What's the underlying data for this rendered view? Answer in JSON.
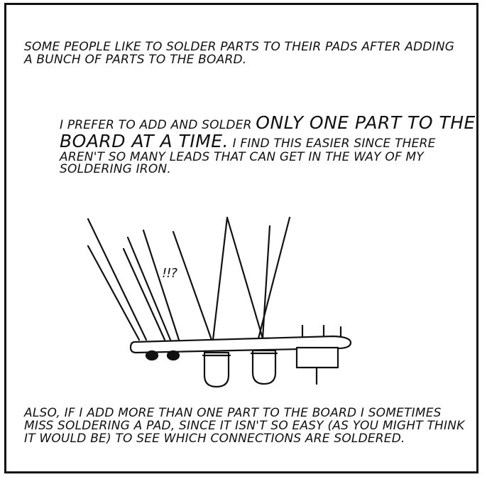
{
  "panel": {
    "intro_text": "SOME PEOPLE LIKE TO SOLDER PARTS TO THEIR PADS AFTER ADDING A BUNCH OF PARTS TO THE BOARD.",
    "pref_text_start": "I PREFER TO ADD AND SOLDER ",
    "pref_text_emphasis": "ONLY ONE PART TO THE BOARD AT A TIME.",
    "pref_text_end": " I FIND THIS EASIER SINCE THERE AREN'T SO MANY LEADS THAT CAN GET IN THE WAY OF MY SOLDERING IRON.",
    "exclamation": "!!?",
    "closing_text": "ALSO, IF I ADD MORE THAN ONE PART TO THE BOARD I SOMETIMES MISS SOLDERING A PAD, SINCE IT ISN'T SO EASY (AS YOU MIGHT THINK IT WOULD BE) TO SEE WHICH CONNECTIONS ARE SOLDERED."
  },
  "illustration": {
    "subject": "circuit-board-with-many-leads",
    "ink_color": "#111111",
    "paper_color": "#ffffff"
  }
}
